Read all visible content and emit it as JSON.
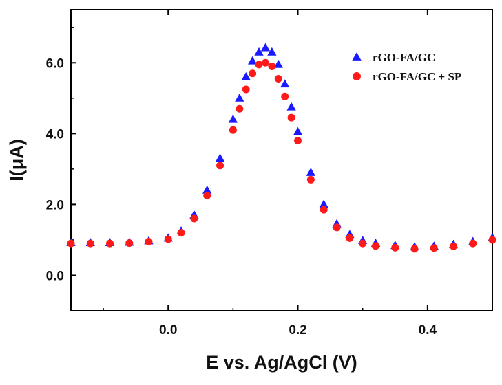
{
  "chart_data": {
    "type": "scatter",
    "title": "",
    "xlabel": "E vs. Ag/AgCl (V)",
    "ylabel": "I(μA)",
    "xlim": [
      -0.15,
      0.5
    ],
    "ylim": [
      -1.0,
      7.5
    ],
    "xticks": [
      "0.0",
      "0.2",
      "0.4"
    ],
    "xtick_values": [
      0.0,
      0.2,
      0.4
    ],
    "yticks": [
      "0.0",
      "2.0",
      "4.0",
      "6.0"
    ],
    "ytick_values": [
      0.0,
      2.0,
      4.0,
      6.0
    ],
    "grid": false,
    "legend_position": "top-right",
    "series": [
      {
        "name": "rGO-FA/GC",
        "marker": "triangle",
        "color": "#1a1aff",
        "x": [
          -0.15,
          -0.12,
          -0.09,
          -0.06,
          -0.03,
          0.0,
          0.02,
          0.04,
          0.06,
          0.08,
          0.1,
          0.11,
          0.12,
          0.13,
          0.14,
          0.15,
          0.16,
          0.17,
          0.18,
          0.19,
          0.2,
          0.22,
          0.24,
          0.26,
          0.28,
          0.3,
          0.32,
          0.35,
          0.38,
          0.41,
          0.44,
          0.47,
          0.5
        ],
        "y": [
          0.92,
          0.92,
          0.92,
          0.93,
          0.97,
          1.05,
          1.25,
          1.7,
          2.4,
          3.3,
          4.4,
          5.0,
          5.6,
          6.05,
          6.3,
          6.42,
          6.3,
          5.95,
          5.4,
          4.75,
          4.05,
          2.9,
          2.0,
          1.45,
          1.15,
          0.98,
          0.9,
          0.84,
          0.8,
          0.82,
          0.87,
          0.95,
          1.06
        ]
      },
      {
        "name": "rGO-FA/GC + SP",
        "marker": "circle",
        "color": "#ff1a1a",
        "x": [
          -0.15,
          -0.12,
          -0.09,
          -0.06,
          -0.03,
          0.0,
          0.02,
          0.04,
          0.06,
          0.08,
          0.1,
          0.11,
          0.12,
          0.13,
          0.14,
          0.15,
          0.16,
          0.17,
          0.18,
          0.19,
          0.2,
          0.22,
          0.24,
          0.26,
          0.28,
          0.3,
          0.32,
          0.35,
          0.38,
          0.41,
          0.44,
          0.47,
          0.5
        ],
        "y": [
          0.9,
          0.9,
          0.9,
          0.91,
          0.95,
          1.02,
          1.2,
          1.6,
          2.25,
          3.1,
          4.1,
          4.7,
          5.25,
          5.7,
          5.95,
          6.0,
          5.9,
          5.55,
          5.05,
          4.45,
          3.8,
          2.7,
          1.85,
          1.35,
          1.05,
          0.9,
          0.83,
          0.78,
          0.75,
          0.77,
          0.82,
          0.9,
          1.0
        ]
      }
    ]
  }
}
